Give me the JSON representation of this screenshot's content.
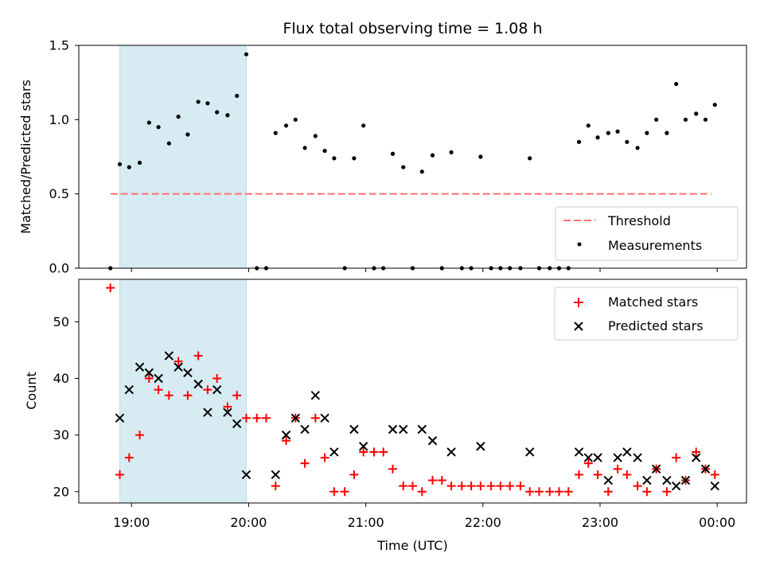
{
  "chart_data": [
    {
      "type": "scatter",
      "title": "Flux total observing time = 1.08 h",
      "xlabel": "",
      "ylabel": "Matched/Predicted stars",
      "ylim": [
        0,
        1.5
      ],
      "yticks": [
        "0.0",
        "0.5",
        "1.0",
        "1.5"
      ],
      "xlim_hours": [
        18.55,
        24.25
      ],
      "shaded_region_hours": [
        18.9,
        19.98
      ],
      "shaded_color": "#add8e6",
      "threshold": {
        "name": "Threshold",
        "value": 0.5,
        "x_start_hours": 18.82,
        "x_end_hours": 23.95,
        "color": "#ff7070"
      },
      "legend": {
        "position": "lower-right",
        "entries": [
          "Threshold",
          "Measurements"
        ]
      },
      "series": [
        {
          "name": "Measurements",
          "marker": "dot",
          "color": "#000000",
          "x_hours": [
            18.82,
            18.9,
            18.98,
            19.07,
            19.15,
            19.23,
            19.32,
            19.4,
            19.48,
            19.57,
            19.65,
            19.73,
            19.82,
            19.9,
            19.98,
            20.07,
            20.15,
            20.23,
            20.32,
            20.4,
            20.48,
            20.57,
            20.65,
            20.73,
            20.82,
            20.9,
            20.98,
            21.07,
            21.15,
            21.23,
            21.32,
            21.4,
            21.48,
            21.57,
            21.65,
            21.73,
            21.82,
            21.9,
            21.98,
            22.07,
            22.15,
            22.23,
            22.32,
            22.4,
            22.48,
            22.57,
            22.65,
            22.73,
            22.82,
            22.9,
            22.98,
            23.07,
            23.15,
            23.23,
            23.32,
            23.4,
            23.48,
            23.57,
            23.65,
            23.73,
            23.82,
            23.9,
            23.98
          ],
          "y": [
            0.0,
            0.7,
            0.68,
            0.71,
            0.98,
            0.95,
            0.84,
            1.02,
            0.9,
            1.12,
            1.11,
            1.05,
            1.03,
            1.16,
            1.44,
            0.0,
            0.0,
            0.91,
            0.96,
            1.0,
            0.81,
            0.89,
            0.79,
            0.74,
            0.0,
            0.74,
            0.96,
            0.0,
            0.0,
            0.77,
            0.68,
            0.0,
            0.65,
            0.76,
            0.0,
            0.78,
            0.0,
            0.0,
            0.75,
            0.0,
            0.0,
            0.0,
            0.0,
            0.74,
            0.0,
            0.0,
            0.0,
            0.0,
            0.85,
            0.96,
            0.88,
            0.91,
            0.92,
            0.85,
            0.81,
            0.91,
            1.0,
            0.91,
            1.24,
            1.0,
            1.04,
            1.0,
            1.1
          ]
        }
      ]
    },
    {
      "type": "scatter",
      "title": "",
      "xlabel": "Time (UTC)",
      "ylabel": "Count",
      "ylim": [
        18,
        57.5
      ],
      "yticks": [
        "20",
        "30",
        "40",
        "50"
      ],
      "xlim_hours": [
        18.55,
        24.25
      ],
      "xticks": [
        "19:00",
        "20:00",
        "21:00",
        "22:00",
        "23:00",
        "00:00"
      ],
      "shaded_region_hours": [
        18.9,
        19.98
      ],
      "shaded_color": "#add8e6",
      "legend": {
        "position": "top-right",
        "entries": [
          "Matched stars",
          "Predicted stars"
        ]
      },
      "series": [
        {
          "name": "Matched stars",
          "marker": "plus",
          "color": "#ff0000",
          "x_hours": [
            18.82,
            18.9,
            18.98,
            19.07,
            19.15,
            19.23,
            19.32,
            19.4,
            19.48,
            19.57,
            19.65,
            19.73,
            19.82,
            19.9,
            19.98,
            20.07,
            20.15,
            20.23,
            20.32,
            20.4,
            20.48,
            20.57,
            20.65,
            20.73,
            20.82,
            20.9,
            20.98,
            21.07,
            21.15,
            21.23,
            21.32,
            21.4,
            21.48,
            21.57,
            21.65,
            21.73,
            21.82,
            21.9,
            21.98,
            22.07,
            22.15,
            22.23,
            22.32,
            22.4,
            22.48,
            22.57,
            22.65,
            22.73,
            22.82,
            22.9,
            22.98,
            23.07,
            23.15,
            23.23,
            23.32,
            23.4,
            23.48,
            23.57,
            23.65,
            23.73,
            23.82,
            23.9,
            23.98
          ],
          "y": [
            56,
            23,
            26,
            30,
            40,
            38,
            37,
            43,
            37,
            44,
            38,
            40,
            35,
            37,
            33,
            33,
            33,
            21,
            29,
            33,
            25,
            33,
            26,
            20,
            20,
            23,
            27,
            27,
            27,
            24,
            21,
            21,
            20,
            22,
            22,
            21,
            21,
            21,
            21,
            21,
            21,
            21,
            21,
            20,
            20,
            20,
            20,
            20,
            23,
            25,
            23,
            20,
            24,
            23,
            21,
            20,
            24,
            20,
            26,
            22,
            27,
            24,
            23
          ]
        },
        {
          "name": "Predicted stars",
          "marker": "x",
          "color": "#000000",
          "x_hours": [
            18.9,
            18.98,
            19.07,
            19.15,
            19.23,
            19.32,
            19.4,
            19.48,
            19.57,
            19.65,
            19.73,
            19.82,
            19.9,
            19.98,
            20.23,
            20.32,
            20.4,
            20.48,
            20.57,
            20.65,
            20.73,
            20.9,
            20.98,
            21.23,
            21.32,
            21.48,
            21.57,
            21.73,
            21.98,
            22.4,
            22.82,
            22.9,
            22.98,
            23.07,
            23.15,
            23.23,
            23.32,
            23.4,
            23.48,
            23.57,
            23.65,
            23.73,
            23.82,
            23.9,
            23.98
          ],
          "y": [
            33,
            38,
            42,
            41,
            40,
            44,
            42,
            41,
            39,
            34,
            38,
            34,
            32,
            23,
            23,
            30,
            33,
            31,
            37,
            33,
            27,
            31,
            28,
            31,
            31,
            31,
            29,
            27,
            28,
            27,
            27,
            26,
            26,
            22,
            26,
            27,
            26,
            22,
            24,
            22,
            21,
            22,
            26,
            24,
            21
          ]
        }
      ]
    }
  ]
}
